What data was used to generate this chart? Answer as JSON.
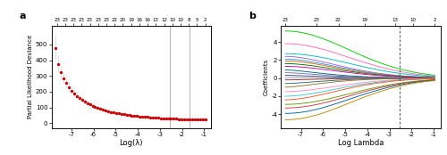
{
  "panel_a": {
    "label": "a",
    "xlabel": "Log(λ)",
    "ylabel": "Partial Likelihood Deviance",
    "top_ticks": [
      23,
      23,
      23,
      23,
      23,
      23,
      23,
      22,
      20,
      19,
      16,
      16,
      13,
      12,
      10,
      10,
      8,
      5,
      2
    ],
    "xlim": [
      -7.9,
      -0.7
    ],
    "ylim": [
      -30,
      620
    ],
    "yticks": [
      0,
      100,
      200,
      300,
      400,
      500
    ],
    "xticks": [
      -7,
      -6,
      -5,
      -4,
      -3,
      -2,
      -1
    ],
    "dot_color": "#CC0000",
    "errorbar_color": "#CCCCCC",
    "vline1": -2.55,
    "vline2": -1.65,
    "vline_color": "#AAAAAA"
  },
  "panel_b": {
    "label": "b",
    "xlabel": "Log Lambda",
    "ylabel": "Coefficients",
    "top_ticks_vals": [
      -7.7,
      -6.3,
      -5.3,
      -4.1,
      -2.75,
      -1.95,
      -0.95
    ],
    "top_ticks_labels": [
      "23",
      "23",
      "22",
      "19",
      "13",
      "10",
      "2"
    ],
    "xlim": [
      -7.9,
      -0.7
    ],
    "ylim": [
      -5.5,
      5.8
    ],
    "yticks": [
      -4,
      -2,
      0,
      2,
      4
    ],
    "xticks": [
      -7,
      -6,
      -5,
      -4,
      -3,
      -2,
      -1
    ],
    "dashed_line_x": -2.55,
    "final_coefs": [
      5.2,
      3.8,
      2.7,
      2.4,
      2.1,
      1.9,
      1.6,
      1.3,
      0.9,
      0.6,
      0.3,
      0.05,
      -0.2,
      -0.6,
      -1.0,
      -1.5,
      -2.0,
      -2.4,
      -2.9,
      -3.3,
      -3.9,
      -4.6
    ],
    "colors": [
      "#00CC00",
      "#FF69B4",
      "#00BBBB",
      "#9966CC",
      "#3399FF",
      "#DD6600",
      "#007700",
      "#CC00AA",
      "#006688",
      "#7777AA",
      "#334488",
      "#999999",
      "#883333",
      "#336666",
      "#887733",
      "#FF88CC",
      "#33CCCC",
      "#FF5522",
      "#669900",
      "#CC3344",
      "#006699",
      "#BB8800"
    ]
  }
}
